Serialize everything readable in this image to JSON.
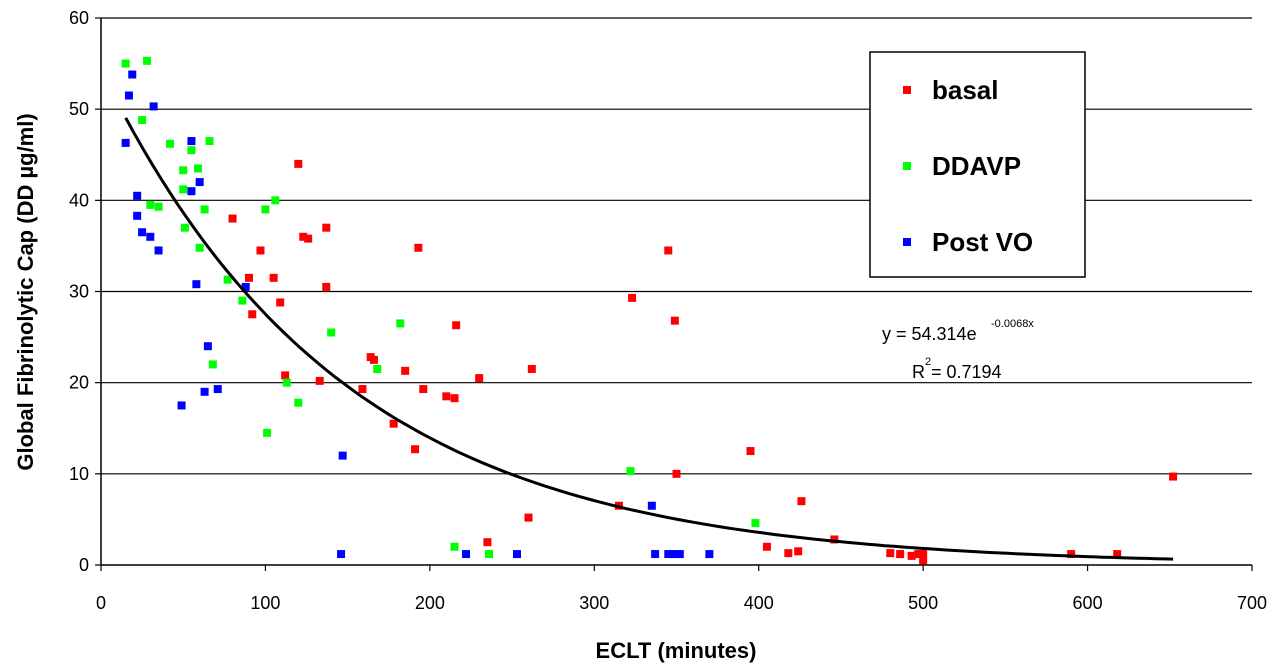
{
  "chart_data": {
    "type": "scatter",
    "xlabel": "ECLT (minutes)",
    "ylabel": "Global Fibrinolytic Cap (DD µg/ml)",
    "xlim": [
      0,
      700
    ],
    "ylim": [
      0,
      60
    ],
    "xticks": [
      "0",
      "100",
      "200",
      "300",
      "400",
      "500",
      "600",
      "700"
    ],
    "yticks": [
      "0",
      "10",
      "20",
      "30",
      "40",
      "50",
      "60"
    ],
    "grid": "horizontal",
    "legend_position": "top-right",
    "series": [
      {
        "name": "basal",
        "color": "#ff0000",
        "points": [
          [
            80,
            38
          ],
          [
            90,
            31.5
          ],
          [
            92,
            27.5
          ],
          [
            97,
            34.5
          ],
          [
            105,
            31.5
          ],
          [
            109,
            28.8
          ],
          [
            112,
            20.8
          ],
          [
            120,
            44
          ],
          [
            123,
            36
          ],
          [
            126,
            35.8
          ],
          [
            133,
            20.2
          ],
          [
            137,
            37
          ],
          [
            137,
            30.5
          ],
          [
            159,
            19.3
          ],
          [
            164,
            22.8
          ],
          [
            166,
            22.5
          ],
          [
            178,
            15.5
          ],
          [
            185,
            21.3
          ],
          [
            191,
            12.7
          ],
          [
            193,
            34.8
          ],
          [
            196,
            19.3
          ],
          [
            210,
            18.5
          ],
          [
            215,
            18.3
          ],
          [
            216,
            26.3
          ],
          [
            230,
            20.5
          ],
          [
            235,
            2.5
          ],
          [
            260,
            5.2
          ],
          [
            262,
            21.5
          ],
          [
            315,
            6.5
          ],
          [
            323,
            29.3
          ],
          [
            345,
            34.5
          ],
          [
            349,
            26.8
          ],
          [
            350,
            10
          ],
          [
            395,
            12.5
          ],
          [
            405,
            2
          ],
          [
            418,
            1.3
          ],
          [
            424,
            1.5
          ],
          [
            426,
            7
          ],
          [
            446,
            2.8
          ],
          [
            480,
            1.3
          ],
          [
            486,
            1.2
          ],
          [
            493,
            1
          ],
          [
            497,
            1.2
          ],
          [
            500,
            1.2
          ],
          [
            500,
            0.5
          ],
          [
            590,
            1.2
          ],
          [
            618,
            1.2
          ],
          [
            652,
            9.7
          ]
        ]
      },
      {
        "name": "DDAVP",
        "color": "#00ff00",
        "points": [
          [
            15,
            55
          ],
          [
            28,
            55.3
          ],
          [
            25,
            48.8
          ],
          [
            42,
            46.2
          ],
          [
            55,
            45.5
          ],
          [
            66,
            46.5
          ],
          [
            50,
            43.3
          ],
          [
            59,
            43.5
          ],
          [
            50,
            41.2
          ],
          [
            30,
            39.5
          ],
          [
            35,
            39.3
          ],
          [
            63,
            39
          ],
          [
            100,
            39
          ],
          [
            106,
            40
          ],
          [
            60,
            34.8
          ],
          [
            51,
            37
          ],
          [
            77,
            31.3
          ],
          [
            86,
            29
          ],
          [
            68,
            22
          ],
          [
            113,
            20
          ],
          [
            120,
            17.8
          ],
          [
            101,
            14.5
          ],
          [
            140,
            25.5
          ],
          [
            182,
            26.5
          ],
          [
            168,
            21.5
          ],
          [
            215,
            2
          ],
          [
            236,
            1.2
          ],
          [
            322,
            10.3
          ],
          [
            398,
            4.6
          ]
        ]
      },
      {
        "name": "Post VO",
        "color": "#0000ff",
        "points": [
          [
            17,
            51.5
          ],
          [
            19,
            53.8
          ],
          [
            32,
            50.3
          ],
          [
            15,
            46.3
          ],
          [
            55,
            46.5
          ],
          [
            55,
            41
          ],
          [
            60,
            42
          ],
          [
            22,
            40.5
          ],
          [
            22,
            38.3
          ],
          [
            25,
            36.5
          ],
          [
            30,
            36
          ],
          [
            35,
            34.5
          ],
          [
            58,
            30.8
          ],
          [
            88,
            30.5
          ],
          [
            65,
            24
          ],
          [
            63,
            19
          ],
          [
            71,
            19.3
          ],
          [
            49,
            17.5
          ],
          [
            147,
            12
          ],
          [
            146,
            1.2
          ],
          [
            222,
            1.2
          ],
          [
            253,
            1.2
          ],
          [
            335,
            6.5
          ],
          [
            337,
            1.2
          ],
          [
            345,
            1.2
          ],
          [
            348,
            1.2
          ],
          [
            352,
            1.2
          ],
          [
            370,
            1.2
          ]
        ]
      }
    ],
    "trendline": {
      "type": "exponential",
      "a": 54.314,
      "b": -0.0068,
      "x_range": [
        15,
        652
      ],
      "equation_label": "y = 54.314e",
      "equation_exponent": "-0.0068x",
      "r2_label": "R",
      "r2_sup": "2",
      "r2_value": " = 0.7194"
    }
  }
}
